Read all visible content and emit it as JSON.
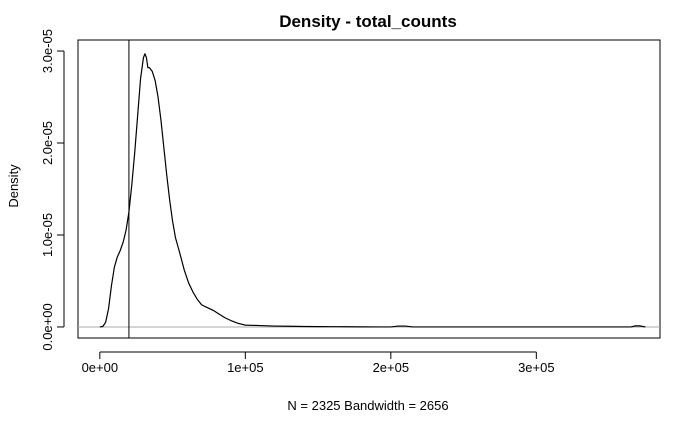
{
  "chart_data": {
    "type": "line",
    "title": "Density - total_counts",
    "xlabel": "N = 2325   Bandwidth = 2656",
    "ylabel": "Density",
    "xlim": [
      -15000,
      385000
    ],
    "ylim": [
      -1.2e-06,
      3.12e-05
    ],
    "x_ticks": [
      {
        "value": 0,
        "label": "0e+00"
      },
      {
        "value": 100000,
        "label": "1e+05"
      },
      {
        "value": 200000,
        "label": "2e+05"
      },
      {
        "value": 300000,
        "label": "3e+05"
      }
    ],
    "y_ticks": [
      {
        "value": 0,
        "label": "0.0e+00"
      },
      {
        "value": 1e-05,
        "label": "1.0e-05"
      },
      {
        "value": 2e-05,
        "label": "2.0e-05"
      },
      {
        "value": 3e-05,
        "label": "3.0e-05"
      }
    ],
    "reference_lines": {
      "horizontal_y": 0,
      "vertical_x": 20000
    },
    "series": [
      {
        "x": [
          0,
          2000,
          4000,
          6000,
          8000,
          10000,
          12000,
          14000,
          16000,
          18000,
          20000,
          22000,
          24000,
          26000,
          28000,
          30000,
          31000,
          32000,
          33000,
          34000,
          36000,
          38000,
          40000,
          42000,
          44000,
          46000,
          48000,
          50000,
          52000,
          55000,
          58000,
          61000,
          64000,
          67000,
          70000,
          74000,
          78000,
          82000,
          86000,
          90000,
          95000,
          100000,
          110000,
          120000,
          130000,
          140000,
          150000,
          160000,
          170000,
          180000,
          200000,
          205000,
          210000,
          215000,
          250000,
          300000,
          365000,
          368000,
          371000,
          375000
        ],
        "y": [
          0,
          5e-08,
          5e-07,
          2e-06,
          4.5e-06,
          6.5e-06,
          7.6e-06,
          8.3e-06,
          9.2e-06,
          1.05e-05,
          1.25e-05,
          1.55e-05,
          1.9e-05,
          2.3e-05,
          2.7e-05,
          2.93e-05,
          2.97e-05,
          2.93e-05,
          2.82e-05,
          2.82e-05,
          2.78e-05,
          2.68e-05,
          2.5e-05,
          2.25e-05,
          1.95e-05,
          1.65e-05,
          1.38e-05,
          1.15e-05,
          9.7e-06,
          8e-06,
          6.2e-06,
          4.8e-06,
          3.8e-06,
          3e-06,
          2.4e-06,
          2.1e-06,
          1.8e-06,
          1.4e-06,
          1e-06,
          7e-07,
          4e-07,
          2e-07,
          1.5e-07,
          1e-07,
          8e-08,
          5e-08,
          4e-08,
          3e-08,
          2e-08,
          1e-08,
          0,
          1e-07,
          1e-07,
          0,
          0,
          0,
          0,
          1.2e-07,
          1.2e-07,
          0
        ]
      }
    ]
  }
}
